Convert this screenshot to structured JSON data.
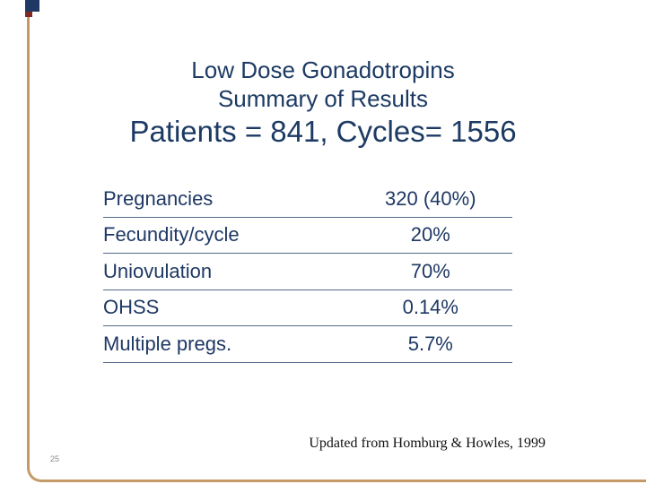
{
  "slide": {
    "title": {
      "line1": "Low Dose Gonadotropins",
      "line2": "Summary of Results",
      "line3": "Patients = 841, Cycles= 1556"
    },
    "table": {
      "rows": [
        {
          "label": "Pregnancies",
          "value": "320 (40%)"
        },
        {
          "label": "Fecundity/cycle",
          "value": "20%"
        },
        {
          "label": "Uniovulation",
          "value": "70%"
        },
        {
          "label": "OHSS",
          "value": "0.14%"
        },
        {
          "label": "Multiple pregs.",
          "value": "5.7%"
        }
      ]
    },
    "footer": {
      "citation": "Updated from Homburg & Howles, 1999"
    },
    "page_number": "25",
    "colors": {
      "title_navy": "#1C3A63",
      "table_navy": "#1F3864",
      "frame_tan": "#C49A66",
      "tab_navy": "#203864",
      "tab_maroon": "#7E2A23",
      "footer_black": "#111111",
      "page_number_gray": "#8A8A8A"
    }
  }
}
